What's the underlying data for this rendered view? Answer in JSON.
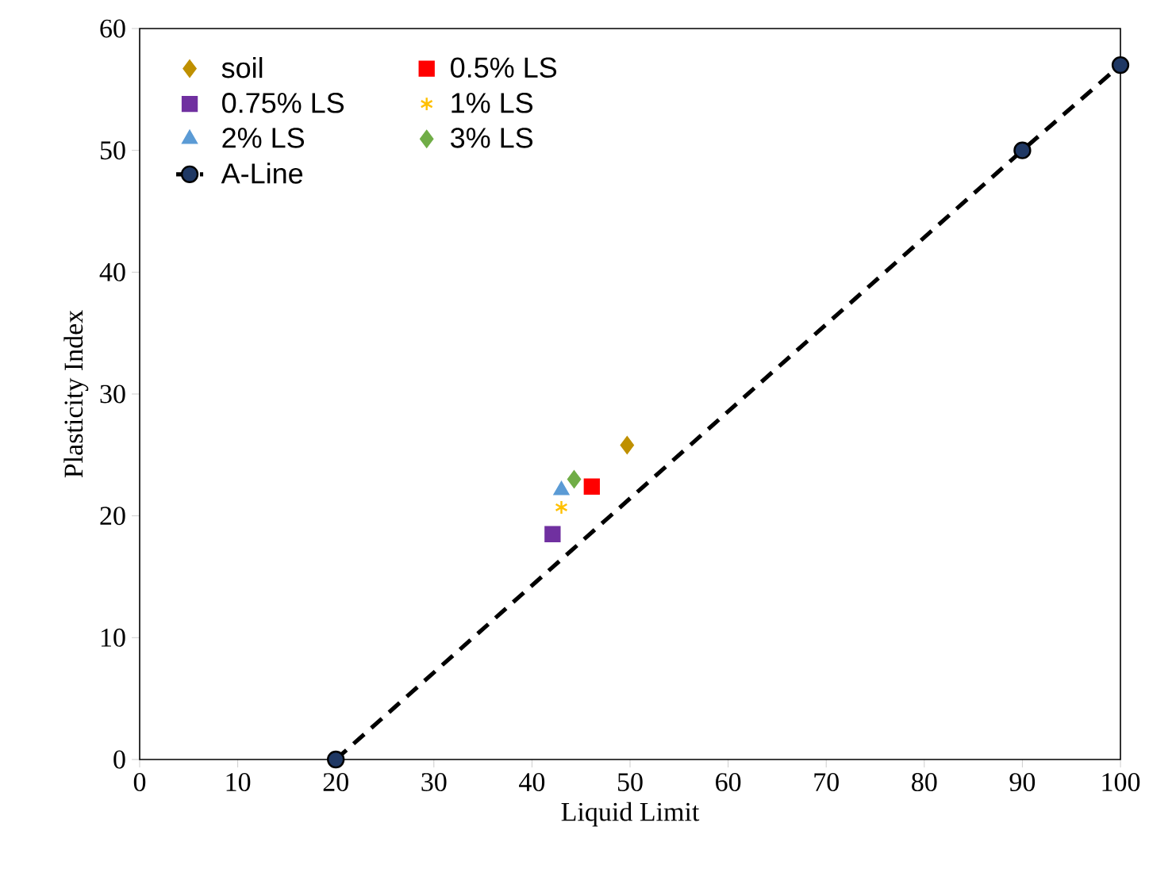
{
  "chart_data": {
    "type": "scatter",
    "xlabel": "Liquid Limit",
    "ylabel": "Plasticity Index",
    "xlim": [
      0,
      100
    ],
    "ylim": [
      0,
      60
    ],
    "xticks": [
      0,
      10,
      20,
      30,
      40,
      50,
      60,
      70,
      80,
      90,
      100
    ],
    "yticks": [
      0,
      10,
      20,
      30,
      40,
      50,
      60
    ],
    "grid": false,
    "legend": "top left",
    "series": [
      {
        "name": "soil",
        "color": "#bf9000",
        "marker": "diamond",
        "x": [
          49.7
        ],
        "values": [
          25.8
        ]
      },
      {
        "name": "0.5% LS",
        "color": "#ff0000",
        "marker": "square",
        "x": [
          46.1
        ],
        "values": [
          22.4
        ]
      },
      {
        "name": "0.75% LS",
        "color": "#7030a0",
        "marker": "square",
        "x": [
          42.1
        ],
        "values": [
          18.5
        ]
      },
      {
        "name": "1% LS",
        "color": "#ffc000",
        "marker": "cross",
        "x": [
          43.0
        ],
        "values": [
          20.7
        ]
      },
      {
        "name": "2% LS",
        "color": "#5b9bd5",
        "marker": "triangle",
        "x": [
          43.0
        ],
        "values": [
          22.1
        ]
      },
      {
        "name": "3% LS",
        "color": "#70ad47",
        "marker": "diamond",
        "x": [
          44.3
        ],
        "values": [
          23.0
        ]
      },
      {
        "name": "A-Line",
        "type": "line",
        "line_style": "dashed",
        "color": "#1f3864",
        "marker": "circle",
        "x": [
          20,
          90,
          100
        ],
        "values": [
          0,
          50,
          57
        ]
      }
    ]
  }
}
